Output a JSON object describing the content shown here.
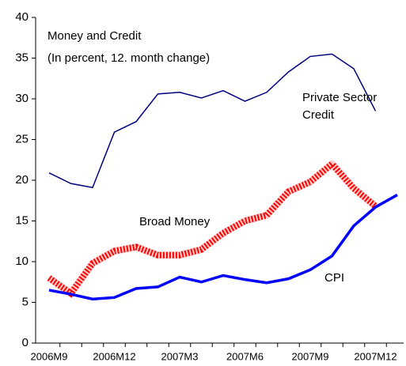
{
  "chart_data": {
    "type": "line",
    "title": "Money and Credit",
    "subtitle": "(In percent, 12. month change)",
    "categories": [
      "2006M9",
      null,
      null,
      "2006M12",
      null,
      null,
      "2007M3",
      null,
      null,
      "2007M6",
      null,
      null,
      "2007M9",
      null,
      null,
      "2007M12",
      null
    ],
    "series": [
      {
        "name": "Private Sector Credit",
        "color": "#000080",
        "values": [
          20.9,
          19.6,
          19.1,
          25.9,
          27.2,
          30.6,
          30.8,
          30.1,
          31.0,
          29.7,
          30.8,
          33.3,
          35.2,
          35.5,
          33.7,
          28.5,
          null
        ]
      },
      {
        "name": "Broad Money",
        "color": "#ff0000",
        "values": [
          8.0,
          6.1,
          9.8,
          11.3,
          11.8,
          10.8,
          10.8,
          11.5,
          13.5,
          15.0,
          15.7,
          18.6,
          19.8,
          22.0,
          19.0,
          16.8,
          null
        ]
      },
      {
        "name": "CPI",
        "color": "#0000ff",
        "values": [
          6.5,
          6.0,
          5.4,
          5.6,
          6.7,
          6.9,
          8.1,
          7.5,
          8.3,
          7.8,
          7.4,
          7.9,
          9.0,
          10.7,
          14.4,
          16.7,
          18.2
        ]
      }
    ],
    "ylim": [
      0,
      40
    ],
    "yticks": [
      0,
      5,
      10,
      15,
      20,
      25,
      30,
      35,
      40
    ],
    "grid": false
  }
}
